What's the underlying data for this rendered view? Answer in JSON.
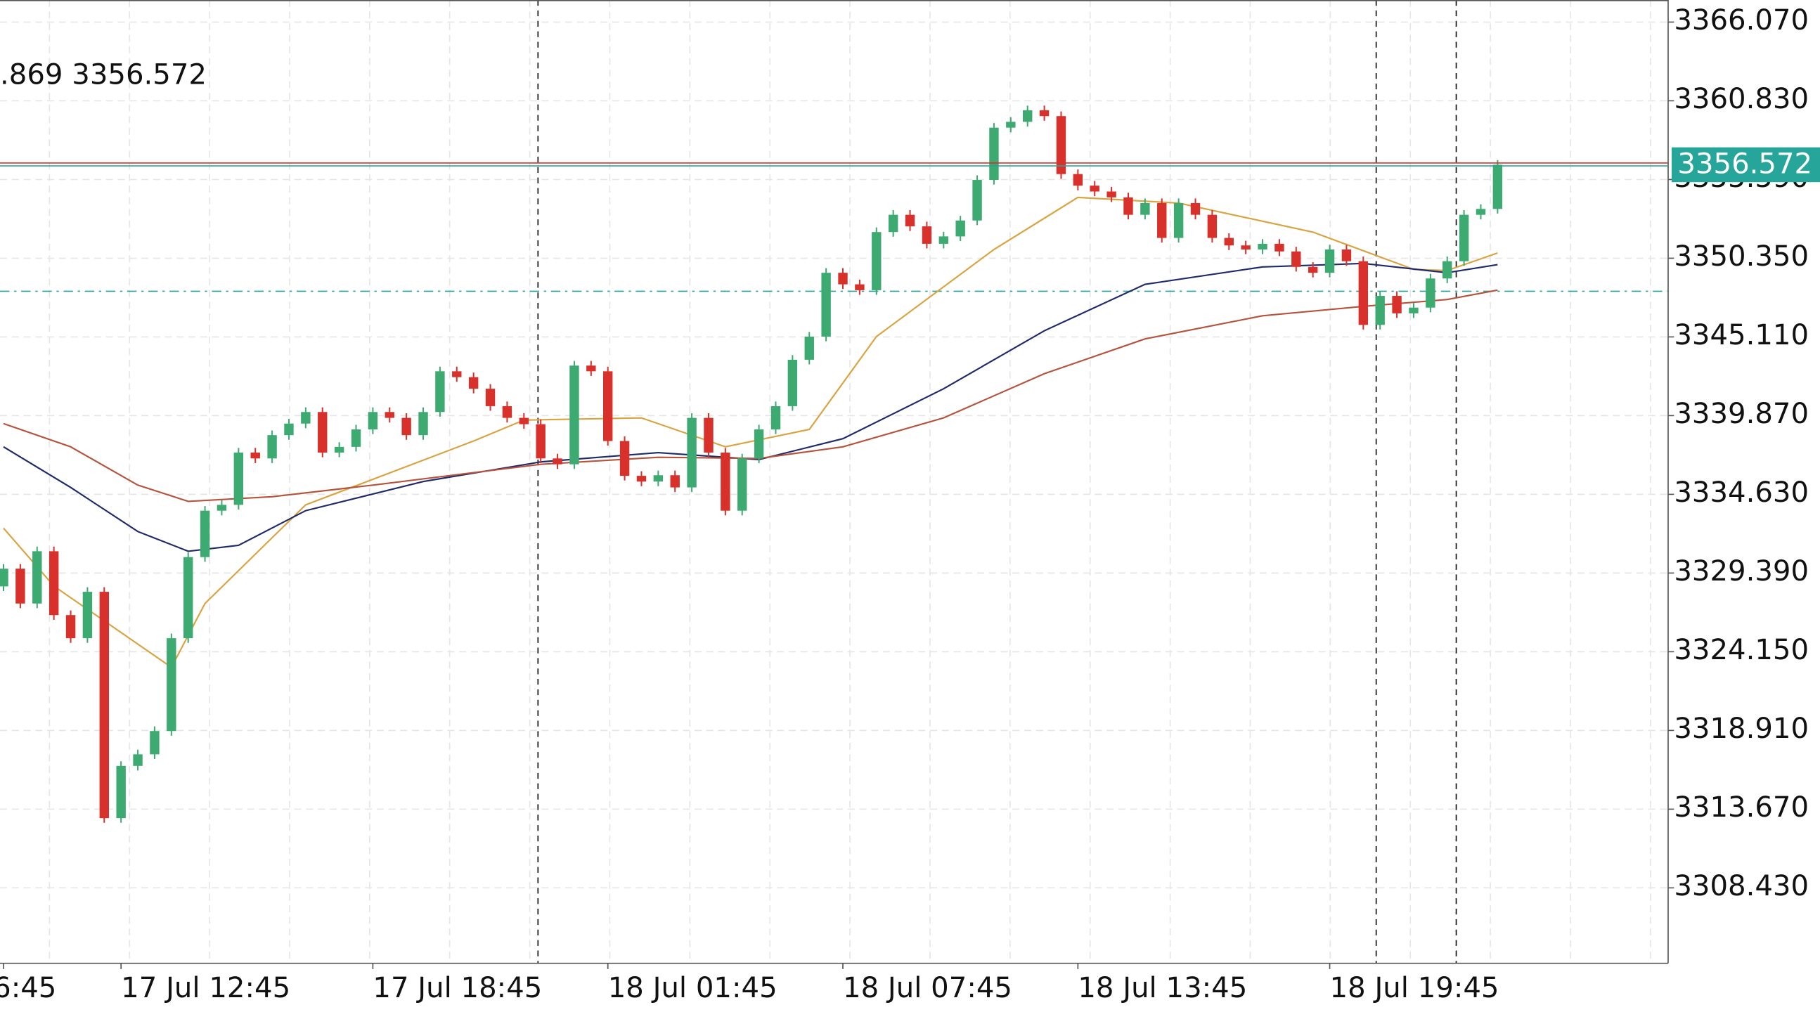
{
  "chart_data": {
    "type": "candlestick",
    "header": ".869 3356.572",
    "categories": [
      "6:45",
      null,
      null,
      null,
      null,
      null,
      null,
      "17 Jul 12:45",
      null,
      null,
      null,
      null,
      null,
      null,
      null,
      null,
      null,
      null,
      null,
      null,
      null,
      null,
      "17 Jul 18:45",
      null,
      null,
      null,
      null,
      null,
      null,
      null,
      null,
      null,
      null,
      null,
      null,
      null,
      "18 Jul 01:45",
      null,
      null,
      null,
      null,
      null,
      null,
      null,
      null,
      null,
      null,
      null,
      null,
      null,
      "18 Jul 07:45",
      null,
      null,
      null,
      null,
      null,
      null,
      null,
      null,
      null,
      null,
      null,
      null,
      null,
      "18 Jul 13:45",
      null,
      null,
      null,
      null,
      null,
      null,
      null,
      null,
      null,
      null,
      null,
      null,
      null,
      null,
      "18 Jul 19:45",
      null,
      null,
      null,
      null,
      null,
      null,
      null,
      null,
      null,
      null
    ],
    "open": [
      3328.5,
      3329.68,
      3327.36,
      3330.84,
      3326.59,
      3325.05,
      3328.14,
      3313.07,
      3316.55,
      3317.32,
      3318.87,
      3325.05,
      3330.45,
      3333.54,
      3333.93,
      3337.41,
      3337.02,
      3338.57,
      3339.34,
      3340.11,
      3337.41,
      3337.79,
      3338.95,
      3340.11,
      3339.72,
      3338.57,
      3340.11,
      3342.82,
      3342.43,
      3341.66,
      3340.5,
      3339.72,
      3339.3,
      3337.02,
      3336.63,
      3343.2,
      3342.82,
      3338.18,
      3335.86,
      3335.48,
      3335.9,
      3335.09,
      3339.72,
      3337.41,
      3333.54,
      3337.02,
      3338.95,
      3340.5,
      3343.59,
      3345.13,
      3349.38,
      3348.61,
      3348.22,
      3352.09,
      3353.24,
      3352.47,
      3351.31,
      3351.8,
      3352.86,
      3355.56,
      3359.04,
      3359.43,
      3360.2,
      3359.81,
      3355.95,
      3355.18,
      3354.79,
      3354.4,
      3353.24,
      3354.02,
      3351.7,
      3354.02,
      3353.24,
      3351.7,
      3351.2,
      3350.93,
      3351.31,
      3350.8,
      3349.77,
      3349.38,
      3350.93,
      3350.15,
      3345.91,
      3347.84,
      3346.68,
      3347.06,
      3349.0,
      3350.15,
      3353.24,
      3353.63
    ],
    "close": [
      3329.68,
      3327.36,
      3330.84,
      3326.59,
      3325.05,
      3328.14,
      3313.07,
      3316.55,
      3317.32,
      3318.87,
      3325.05,
      3330.45,
      3333.54,
      3333.93,
      3337.41,
      3337.02,
      3338.57,
      3339.34,
      3340.11,
      3337.41,
      3337.79,
      3338.95,
      3340.11,
      3339.72,
      3338.57,
      3340.11,
      3342.82,
      3342.43,
      3341.66,
      3340.5,
      3339.72,
      3339.3,
      3337.02,
      3336.63,
      3343.2,
      3342.82,
      3338.18,
      3335.86,
      3335.48,
      3335.9,
      3335.09,
      3339.72,
      3337.41,
      3333.54,
      3337.02,
      3338.95,
      3340.5,
      3343.59,
      3345.13,
      3349.38,
      3348.61,
      3348.22,
      3352.09,
      3353.24,
      3352.47,
      3351.31,
      3351.8,
      3352.86,
      3355.56,
      3359.04,
      3359.43,
      3360.2,
      3359.81,
      3355.95,
      3355.18,
      3354.79,
      3354.4,
      3353.24,
      3354.02,
      3351.7,
      3354.02,
      3353.24,
      3351.7,
      3351.2,
      3350.93,
      3351.31,
      3350.8,
      3349.77,
      3349.38,
      3350.93,
      3350.15,
      3345.91,
      3347.84,
      3346.68,
      3347.06,
      3349.0,
      3350.15,
      3353.24,
      3353.63,
      3356.572
    ],
    "up_color": "#3daa72",
    "down_color": "#d8302a",
    "lines": [
      {
        "color": "#d9a340",
        "x": [
          0,
          3,
          10,
          12,
          18,
          28,
          31,
          38,
          43,
          48,
          52,
          59,
          64,
          70,
          78,
          84,
          86,
          89
        ],
        "values": [
          3332.38,
          3328.52,
          3323.11,
          3327.36,
          3333.93,
          3338.18,
          3339.57,
          3339.72,
          3337.79,
          3338.95,
          3345.13,
          3350.93,
          3354.4,
          3354.02,
          3352.09,
          3349.61,
          3349.53,
          3350.7
        ]
      },
      {
        "color": "#1f2a6b",
        "x": [
          0,
          4,
          8,
          11,
          14,
          18,
          25,
          32,
          39,
          45,
          50,
          56,
          62,
          68,
          75,
          81,
          86,
          89
        ],
        "values": [
          3337.79,
          3335.09,
          3332.15,
          3330.84,
          3331.23,
          3333.54,
          3335.48,
          3336.79,
          3337.41,
          3336.94,
          3338.33,
          3341.66,
          3345.52,
          3348.61,
          3349.77,
          3350.0,
          3349.38,
          3349.92
        ]
      },
      {
        "color": "#b5533c",
        "x": [
          0,
          4,
          8,
          11,
          16,
          22,
          32,
          39,
          45,
          50,
          56,
          62,
          68,
          75,
          81,
          86,
          89
        ],
        "values": [
          3339.34,
          3337.79,
          3335.24,
          3334.16,
          3334.47,
          3335.24,
          3336.63,
          3337.1,
          3337.02,
          3337.79,
          3339.72,
          3342.66,
          3344.98,
          3346.52,
          3347.14,
          3347.6,
          3348.22
        ]
      }
    ],
    "current_price": {
      "value": 3356.572,
      "label": "3356.572"
    },
    "price_box_color": "#26a69a",
    "level": 3348.15,
    "xlim": [
      -0.21,
      99.16
    ],
    "ylim": [
      3303.41,
      3367.54
    ],
    "yticks": [
      {
        "value": 3366.07,
        "label": "3366.070"
      },
      {
        "value": 3360.83,
        "label": "3360.830"
      },
      {
        "value": 3355.59,
        "label": "3355.590"
      },
      {
        "value": 3350.35,
        "label": "3350.350"
      },
      {
        "value": 3345.11,
        "label": "3345.110"
      },
      {
        "value": 3339.87,
        "label": "3339.870"
      },
      {
        "value": 3334.63,
        "label": "3334.630"
      },
      {
        "value": 3329.39,
        "label": "3329.390"
      },
      {
        "value": 3324.15,
        "label": "3324.150"
      },
      {
        "value": 3318.91,
        "label": "3318.910"
      },
      {
        "value": 3313.67,
        "label": "3313.670"
      },
      {
        "value": 3308.43,
        "label": "3308.430"
      }
    ],
    "grid": true
  }
}
